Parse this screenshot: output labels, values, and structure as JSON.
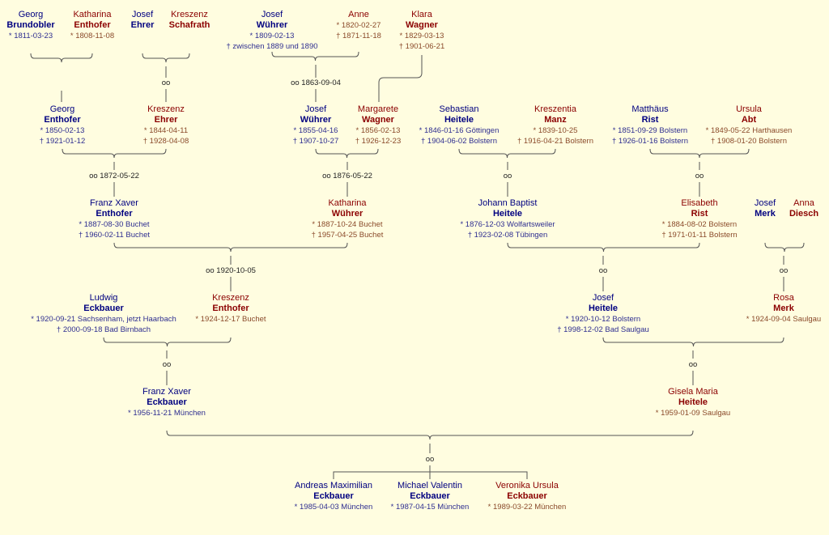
{
  "persons": [
    {
      "id": "georg-brundobler",
      "sex": "m",
      "first": "Georg",
      "last": "Brundobler",
      "dates": [
        "* 1811-03-23"
      ]
    },
    {
      "id": "katharina-enthofer-1808",
      "sex": "f",
      "first": "Katharina",
      "last": "Enthofer",
      "dates": [
        "* 1808-11-08"
      ]
    },
    {
      "id": "josef-ehrer",
      "sex": "m",
      "first": "Josef",
      "last": "Ehrer",
      "dates": []
    },
    {
      "id": "kreszenz-schafrath",
      "sex": "f",
      "first": "Kreszenz",
      "last": "Schafrath",
      "dates": []
    },
    {
      "id": "josef-wuehrer-1809",
      "sex": "m",
      "first": "Josef",
      "last": "Wührer",
      "dates": [
        "* 1809-02-13",
        "† zwischen 1889 und 1890"
      ]
    },
    {
      "id": "anne",
      "sex": "f",
      "first": "Anne",
      "last": "",
      "dates": [
        "* 1820-02-27",
        "† 1871-11-18"
      ]
    },
    {
      "id": "klara-wagner",
      "sex": "f",
      "first": "Klara",
      "last": "Wagner",
      "dates": [
        "* 1829-03-13",
        "† 1901-06-21"
      ]
    },
    {
      "id": "georg-enthofer",
      "sex": "m",
      "first": "Georg",
      "last": "Enthofer",
      "dates": [
        "* 1850-02-13",
        "† 1921-01-12"
      ]
    },
    {
      "id": "kreszenz-ehrer",
      "sex": "f",
      "first": "Kreszenz",
      "last": "Ehrer",
      "dates": [
        "* 1844-04-11",
        "† 1928-04-08"
      ]
    },
    {
      "id": "josef-wuehrer-1855",
      "sex": "m",
      "first": "Josef",
      "last": "Wührer",
      "dates": [
        "* 1855-04-16",
        "† 1907-10-27"
      ]
    },
    {
      "id": "margarete-wagner",
      "sex": "f",
      "first": "Margarete",
      "last": "Wagner",
      "dates": [
        "* 1856-02-13",
        "† 1926-12-23"
      ]
    },
    {
      "id": "sebastian-heitele",
      "sex": "m",
      "first": "Sebastian",
      "last": "Heitele",
      "dates": [
        "* 1846-01-16 Göttingen",
        "† 1904-06-02 Bolstern"
      ]
    },
    {
      "id": "kreszentia-manz",
      "sex": "f",
      "first": "Kreszentia",
      "last": "Manz",
      "dates": [
        "* 1839-10-25",
        "† 1916-04-21 Bolstern"
      ]
    },
    {
      "id": "matthaeus-rist",
      "sex": "m",
      "first": "Matthäus",
      "last": "Rist",
      "dates": [
        "* 1851-09-29 Bolstern",
        "† 1926-01-16 Bolstern"
      ]
    },
    {
      "id": "ursula-abt",
      "sex": "f",
      "first": "Ursula",
      "last": "Abt",
      "dates": [
        "* 1849-05-22 Harthausen",
        "† 1908-01-20 Bolstern"
      ]
    },
    {
      "id": "franz-xaver-enthofer",
      "sex": "m",
      "first": "Franz Xaver",
      "last": "Enthofer",
      "dates": [
        "* 1887-08-30 Buchet",
        "† 1960-02-11 Buchet"
      ]
    },
    {
      "id": "katharina-wuehrer",
      "sex": "f",
      "first": "Katharina",
      "last": "Wührer",
      "dates": [
        "* 1887-10-24 Buchet",
        "† 1957-04-25 Buchet"
      ]
    },
    {
      "id": "johann-baptist-heitele",
      "sex": "m",
      "first": "Johann Baptist",
      "last": "Heitele",
      "dates": [
        "* 1876-12-03 Wolfartsweiler",
        "† 1923-02-08 Tübingen"
      ]
    },
    {
      "id": "elisabeth-rist",
      "sex": "f",
      "first": "Elisabeth",
      "last": "Rist",
      "dates": [
        "* 1884-08-02 Bolstern",
        "† 1971-01-11 Bolstern"
      ]
    },
    {
      "id": "josef-merk",
      "sex": "m",
      "first": "Josef",
      "last": "Merk",
      "dates": []
    },
    {
      "id": "anna-diesch",
      "sex": "f",
      "first": "Anna",
      "last": "Diesch",
      "dates": []
    },
    {
      "id": "ludwig-eckbauer",
      "sex": "m",
      "first": "Ludwig",
      "last": "Eckbauer",
      "dates": [
        "* 1920-09-21 Sachsenham, jetzt Haarbach",
        "† 2000-09-18 Bad Birnbach"
      ]
    },
    {
      "id": "kreszenz-enthofer",
      "sex": "f",
      "first": "Kreszenz",
      "last": "Enthofer",
      "dates": [
        "* 1924-12-17 Buchet"
      ]
    },
    {
      "id": "josef-heitele",
      "sex": "m",
      "first": "Josef",
      "last": "Heitele",
      "dates": [
        "* 1920-10-12 Bolstern",
        "† 1998-12-02 Bad Saulgau"
      ]
    },
    {
      "id": "rosa-merk",
      "sex": "f",
      "first": "Rosa",
      "last": "Merk",
      "dates": [
        "* 1924-09-04 Saulgau"
      ]
    },
    {
      "id": "franz-xaver-eckbauer",
      "sex": "m",
      "first": "Franz Xaver",
      "last": "Eckbauer",
      "dates": [
        "* 1956-11-21 München"
      ]
    },
    {
      "id": "gisela-maria-heitele",
      "sex": "f",
      "first": "Gisela Maria",
      "last": "Heitele",
      "dates": [
        "* 1959-01-09 Saulgau"
      ]
    },
    {
      "id": "andreas-maximilian-eckbauer",
      "sex": "m",
      "first": "Andreas Maximilian",
      "last": "Eckbauer",
      "dates": [
        "* 1985-04-03 München"
      ]
    },
    {
      "id": "michael-valentin-eckbauer",
      "sex": "m",
      "first": "Michael Valentin",
      "last": "Eckbauer",
      "dates": [
        "* 1987-04-15 München"
      ]
    },
    {
      "id": "veronika-ursula-eckbauer",
      "sex": "f",
      "first": "Veronika Ursula",
      "last": "Eckbauer",
      "dates": [
        "* 1989-03-22 München"
      ]
    }
  ],
  "marriages": [
    {
      "id": "ehrer-schafrath",
      "label": "oo"
    },
    {
      "id": "wuehrer-1863",
      "label": "oo 1863-09-04"
    },
    {
      "id": "enthofer-ehrer",
      "label": "oo 1872-05-22"
    },
    {
      "id": "wuehrer-wagner",
      "label": "oo 1876-05-22"
    },
    {
      "id": "heitele-manz",
      "label": "oo"
    },
    {
      "id": "rist-abt",
      "label": "oo"
    },
    {
      "id": "enthofer-wuehrer",
      "label": "oo 1920-10-05"
    },
    {
      "id": "heitele-rist",
      "label": "oo"
    },
    {
      "id": "merk-diesch",
      "label": "oo"
    },
    {
      "id": "eckbauer-enthofer",
      "label": "oo"
    },
    {
      "id": "heitele-merk",
      "label": "oo"
    },
    {
      "id": "eckbauer-heitele",
      "label": "oo"
    }
  ],
  "colors": {
    "background": "#fffde0",
    "male": "#000080",
    "female": "#8b0000",
    "lines": "#555555"
  }
}
